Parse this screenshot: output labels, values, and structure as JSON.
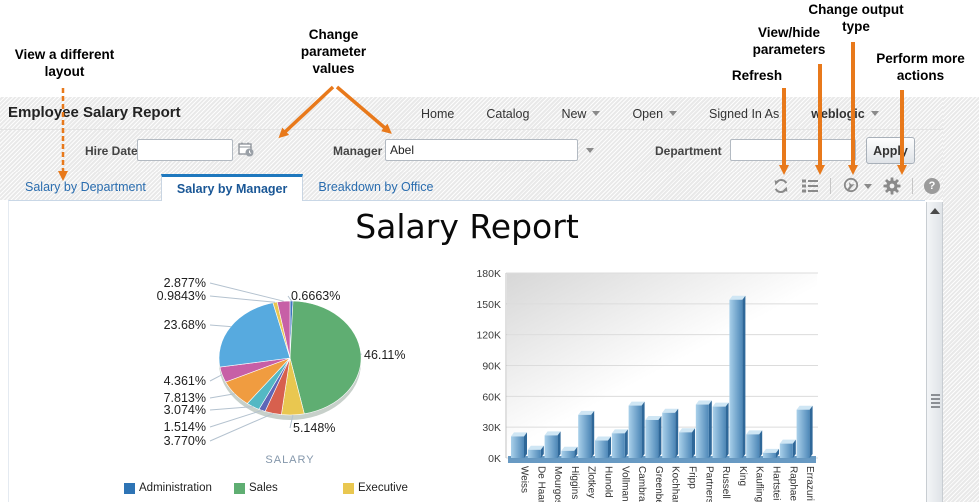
{
  "annotations": {
    "view_layout": "View a different\nlayout",
    "change_params": "Change\nparameter\nvalues",
    "refresh": "Refresh",
    "view_hide": "View/hide\nparameters",
    "change_output": "Change output\ntype",
    "perform_more": "Perform more\nactions"
  },
  "header": {
    "title": "Employee Salary Report",
    "nav": {
      "home": "Home",
      "catalog": "Catalog",
      "new": "New",
      "open": "Open",
      "signed_in_as": "Signed In As",
      "user": "weblogic"
    }
  },
  "parameters": {
    "hire_date": {
      "label": "Hire Date",
      "value": ""
    },
    "manager": {
      "label": "Manager",
      "value": "Abel"
    },
    "department": {
      "label": "Department",
      "value": ""
    },
    "apply_label": "Apply"
  },
  "tabs": [
    {
      "label": "Salary by Department",
      "active": false
    },
    {
      "label": "Salary by Manager",
      "active": true
    },
    {
      "label": "Breakdown by Office",
      "active": false
    }
  ],
  "toolbar": {
    "icons": [
      "refresh-icon",
      "parameters-icon",
      "output-type-icon",
      "gear-icon",
      "help-icon"
    ],
    "help_glyph": "?"
  },
  "report": {
    "title": "Salary Report"
  },
  "colors": {
    "annotation_orange": "#E8791B",
    "tab_blue": "#2A6DAF",
    "active_tab_border": "#1E78BE",
    "bar_blue": "#4E88B8"
  },
  "chart_data": [
    {
      "type": "pie",
      "axis_label": "SALARY",
      "slices": [
        {
          "label": "0.6663%",
          "value": 0.6663,
          "color": "#3D74BF"
        },
        {
          "label": "46.11%",
          "value": 46.11,
          "color": "#5FAE72"
        },
        {
          "label": "5.148%",
          "value": 5.148,
          "color": "#E9C750"
        },
        {
          "label": "3.770%",
          "value": 3.77,
          "color": "#D7604E"
        },
        {
          "label": "1.514%",
          "value": 1.514,
          "color": "#5E66B8"
        },
        {
          "label": "3.074%",
          "value": 3.074,
          "color": "#54B8C4"
        },
        {
          "label": "7.813%",
          "value": 7.813,
          "color": "#F09C40"
        },
        {
          "label": "4.361%",
          "value": 4.361,
          "color": "#C75FA6"
        },
        {
          "label": "23.68%",
          "value": 23.68,
          "color": "#57AADF"
        },
        {
          "label": "0.9843%",
          "value": 0.9843,
          "color": "#E9C750"
        },
        {
          "label": "2.877%",
          "value": 2.877,
          "color": "#C75FA6"
        }
      ],
      "legend": [
        {
          "label": "Administration",
          "color": "#2E74B5"
        },
        {
          "label": "Sales",
          "color": "#5FAE72"
        },
        {
          "label": "Executive",
          "color": "#E9C750"
        }
      ]
    },
    {
      "type": "bar",
      "categories": [
        "Weiss",
        "De Haan",
        "Mourgos",
        "Higgins",
        "Zlotkey",
        "Hunold",
        "Vollman",
        "Cambra",
        "Greenbe",
        "Kochhar",
        "Fripp",
        "Partners",
        "Russell",
        "King",
        "Kaufling",
        "Hartstei",
        "Raphae",
        "Errazuri"
      ],
      "values": [
        21,
        8,
        22,
        7,
        42,
        17,
        24,
        51,
        37,
        44,
        25,
        52,
        50,
        154,
        23,
        5,
        14,
        47
      ],
      "yticks": [
        "0K",
        "30K",
        "60K",
        "90K",
        "120K",
        "150K",
        "180K"
      ],
      "ylim": [
        0,
        180
      ],
      "grid": true
    }
  ]
}
